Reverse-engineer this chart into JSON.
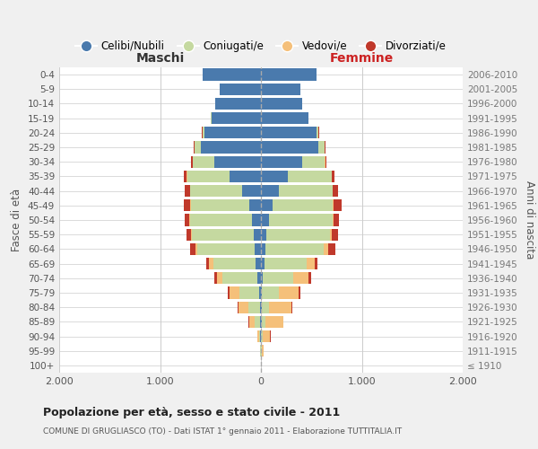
{
  "age_groups": [
    "100+",
    "95-99",
    "90-94",
    "85-89",
    "80-84",
    "75-79",
    "70-74",
    "65-69",
    "60-64",
    "55-59",
    "50-54",
    "45-49",
    "40-44",
    "35-39",
    "30-34",
    "25-29",
    "20-24",
    "15-19",
    "10-14",
    "5-9",
    "0-4"
  ],
  "birth_years": [
    "≤ 1910",
    "1911-1915",
    "1916-1920",
    "1921-1925",
    "1926-1930",
    "1931-1935",
    "1936-1940",
    "1941-1945",
    "1946-1950",
    "1951-1955",
    "1956-1960",
    "1961-1965",
    "1966-1970",
    "1971-1975",
    "1976-1980",
    "1981-1985",
    "1986-1990",
    "1991-1995",
    "1996-2000",
    "2001-2005",
    "2006-2010"
  ],
  "colors": {
    "celibi": "#4a7aad",
    "coniugati": "#c5d9a0",
    "vedovi": "#f5c07a",
    "divorziati": "#c0392b"
  },
  "maschi": {
    "celibi": [
      0,
      2,
      5,
      10,
      12,
      18,
      40,
      50,
      60,
      75,
      85,
      120,
      190,
      310,
      460,
      600,
      560,
      490,
      450,
      410,
      580
    ],
    "coniugati": [
      0,
      3,
      15,
      55,
      115,
      195,
      340,
      420,
      570,
      610,
      615,
      570,
      510,
      420,
      215,
      55,
      18,
      4,
      2,
      0,
      0
    ],
    "vedovi": [
      0,
      3,
      18,
      55,
      95,
      100,
      55,
      45,
      18,
      8,
      8,
      8,
      4,
      4,
      4,
      4,
      4,
      0,
      0,
      0,
      0
    ],
    "divorziati": [
      0,
      0,
      0,
      4,
      8,
      18,
      28,
      28,
      58,
      48,
      48,
      68,
      48,
      28,
      18,
      8,
      4,
      0,
      0,
      0,
      0
    ]
  },
  "femmine": {
    "celibi": [
      0,
      2,
      4,
      8,
      8,
      12,
      22,
      32,
      42,
      55,
      80,
      115,
      180,
      270,
      410,
      570,
      550,
      470,
      410,
      390,
      550
    ],
    "coniugati": [
      0,
      4,
      12,
      35,
      75,
      165,
      300,
      420,
      580,
      630,
      630,
      600,
      530,
      430,
      225,
      65,
      22,
      4,
      2,
      0,
      0
    ],
    "vedovi": [
      4,
      22,
      75,
      175,
      215,
      195,
      145,
      85,
      45,
      18,
      12,
      8,
      4,
      4,
      4,
      0,
      0,
      0,
      0,
      0,
      0
    ],
    "divorziati": [
      0,
      0,
      4,
      8,
      12,
      18,
      28,
      22,
      68,
      58,
      52,
      78,
      48,
      28,
      12,
      4,
      4,
      0,
      0,
      0,
      0
    ]
  },
  "xlim": 2000,
  "xtick_vals": [
    -2000,
    -1000,
    0,
    1000,
    2000
  ],
  "xtick_labels": [
    "2.000",
    "1.000",
    "0",
    "1.000",
    "2.000"
  ],
  "title": "Popolazione per età, sesso e stato civile - 2011",
  "subtitle": "COMUNE DI GRUGLIASCO (TO) - Dati ISTAT 1° gennaio 2011 - Elaborazione TUTTITALIA.IT",
  "ylabel_left": "Fasce di età",
  "ylabel_right": "Anni di nascita",
  "label_maschi": "Maschi",
  "label_femmine": "Femmine",
  "legend_labels": [
    "Celibi/Nubili",
    "Coniugati/e",
    "Vedovi/e",
    "Divorziati/e"
  ],
  "bg_color": "#f0f0f0",
  "plot_bg": "#ffffff",
  "grid_color": "#cccccc",
  "label_maschi_color": "#333333",
  "label_femmine_color": "#cc2222"
}
